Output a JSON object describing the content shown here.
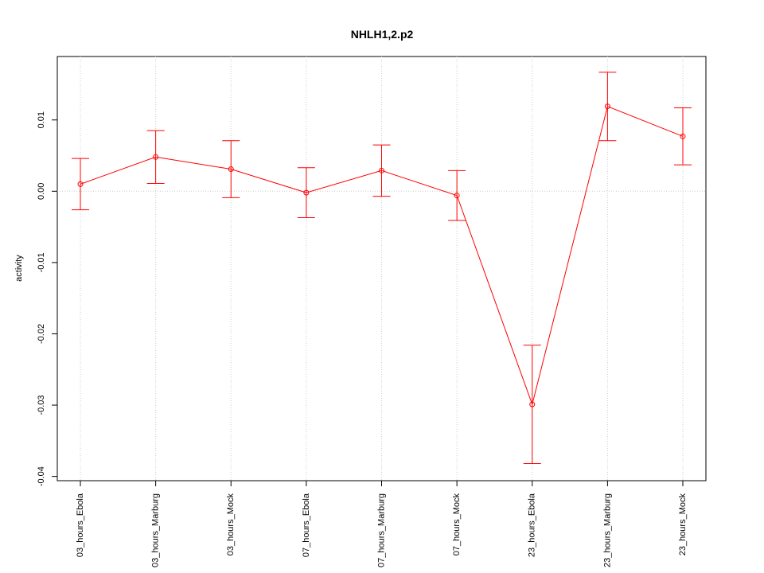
{
  "chart_data": {
    "type": "line",
    "title": "NHLH1,2.p2",
    "y_label": "activity",
    "categories": [
      "03_hours_Ebola",
      "03_hours_Marburg",
      "03_hours_Mock",
      "07_hours_Ebola",
      "07_hours_Marburg",
      "07_hours_Mock",
      "23_hours_Ebola",
      "23_hours_Marburg",
      "23_hours_Mock"
    ],
    "values": [
      0.001,
      0.0048,
      0.0031,
      -0.0002,
      0.0029,
      -0.0006,
      -0.0299,
      0.0119,
      0.0077
    ],
    "errors": [
      0.0036,
      0.0037,
      0.004,
      0.0035,
      0.0036,
      0.0035,
      0.0083,
      0.0048,
      0.004
    ],
    "color": "#ff0000",
    "ylim": [
      -0.0406,
      0.0189
    ],
    "yticks": [
      -0.04,
      -0.03,
      -0.02,
      -0.01,
      {
        "value": 0,
        "label": "0.00"
      },
      0.01
    ],
    "reference_line": 0,
    "grid": "x"
  }
}
